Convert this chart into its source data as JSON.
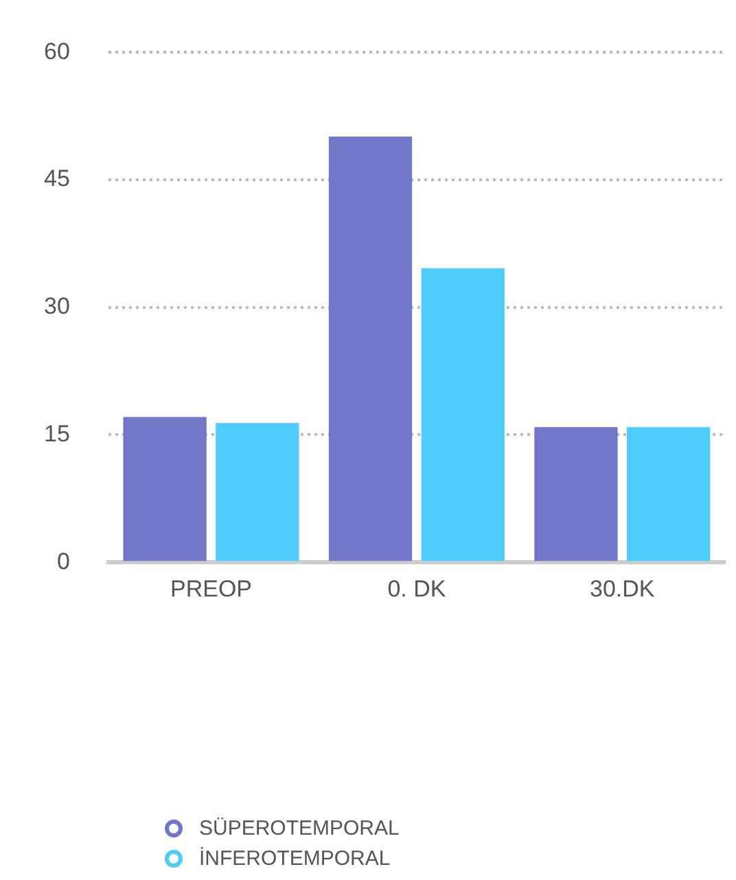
{
  "chart_data": {
    "type": "bar",
    "categories": [
      "PREOP",
      "0. DK",
      "30.DK"
    ],
    "series": [
      {
        "name": "SÜPEROTEMPORAL",
        "color": "#7077c8",
        "values": [
          17.1,
          50.1,
          15.9
        ]
      },
      {
        "name": "İNFEROTEMPORAL",
        "color": "#4ecdfd",
        "values": [
          16.4,
          34.6,
          15.9
        ]
      }
    ],
    "ylim": [
      0,
      60
    ],
    "yticks": [
      0,
      15,
      30,
      45,
      60
    ],
    "grid": "y",
    "legend": "bottom",
    "marker": "circle"
  }
}
